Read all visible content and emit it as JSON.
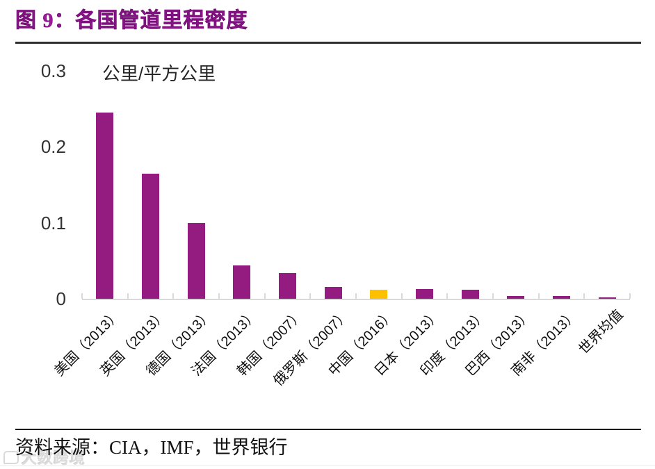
{
  "figure": {
    "title": "图 9：各国管道里程密度",
    "source": "资料来源：CIA，IMF，世界银行",
    "watermark_text": "大数跨境",
    "watermark_logo_icon": "rounded-badge-with-degree-mark"
  },
  "chart_data": {
    "type": "bar",
    "title": "各国管道里程密度",
    "unit_label": "公里/平方公里",
    "xlabel": "",
    "ylabel": "公里/平方公里",
    "categories": [
      "美国（2013）",
      "英国（2013）",
      "德国（2013）",
      "法国（2013）",
      "韩国（2007）",
      "俄罗斯（2007）",
      "中国（2016）",
      "日本（2013）",
      "印度（2013）",
      "巴西（2013）",
      "南非（2013）",
      "世界均值"
    ],
    "values": [
      0.245,
      0.165,
      0.1,
      0.044,
      0.034,
      0.016,
      0.012,
      0.013,
      0.012,
      0.004,
      0.004,
      0.002
    ],
    "ylim": [
      0,
      0.3
    ],
    "yticks": [
      {
        "label": "0",
        "value": 0
      },
      {
        "label": "0.1",
        "value": 0.1
      },
      {
        "label": "0.2",
        "value": 0.2
      },
      {
        "label": "0.3",
        "value": 0.3
      }
    ],
    "grid": false,
    "legend_position": "none",
    "x_label_rotation_deg": -45,
    "colors": {
      "bar_default": "#941B80",
      "bar_highlight": "#FFC000",
      "highlight_index": 6,
      "title_accent": "#991B99",
      "axis_line": "#D9D9D9"
    }
  }
}
